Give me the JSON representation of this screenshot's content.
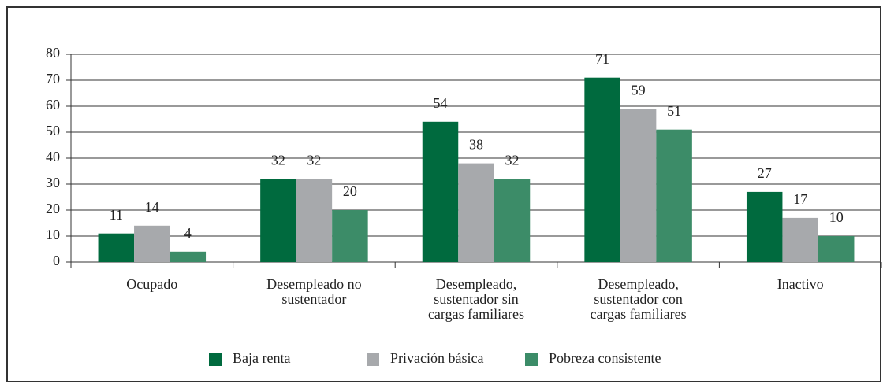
{
  "chart_data": {
    "type": "bar",
    "categories": [
      "Ocupado",
      "Desempleado no sustentador",
      "Desempleado, sustentador sin cargas familiares",
      "Desempleado, sustentador con cargas familiares",
      "Inactivo"
    ],
    "series": [
      {
        "name": "Baja renta",
        "color": "#006a3e",
        "values": [
          11,
          32,
          54,
          71,
          27
        ]
      },
      {
        "name": "Privación básica",
        "color": "#a7a9ac",
        "values": [
          14,
          32,
          38,
          59,
          17
        ]
      },
      {
        "name": "Pobreza consistente",
        "color": "#3c8c68",
        "values": [
          4,
          20,
          32,
          51,
          10
        ]
      }
    ],
    "ylim": [
      0,
      80
    ],
    "yticks": [
      0,
      10,
      20,
      30,
      40,
      50,
      60,
      70,
      80
    ],
    "grid": true,
    "legend": "bottom"
  }
}
